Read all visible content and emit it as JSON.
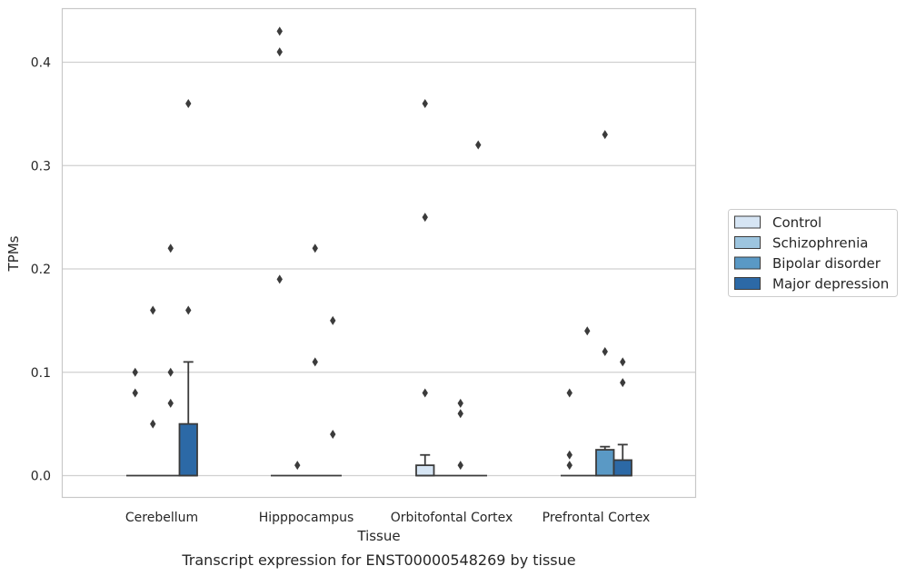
{
  "caption": "Transcript expression for ENST00000548269 by tissue",
  "chart_data": {
    "type": "box",
    "xlabel": "Tissue",
    "ylabel": "TPMs",
    "categories": [
      "Cerebellum",
      "Hipppocampus",
      "Orbitofontal Cortex",
      "Prefrontal Cortex"
    ],
    "ylim": [
      -0.021,
      0.453
    ],
    "yticks": [
      "0.0",
      "0.1",
      "0.2",
      "0.3",
      "0.4"
    ],
    "ytick_values": [
      0.0,
      0.1,
      0.2,
      0.3,
      0.4
    ],
    "grid": true,
    "legend_position": "right",
    "series": [
      {
        "name": "Control",
        "color": "#d6e5f4",
        "boxes": [
          {
            "q1": 0,
            "median": 0,
            "q3": 0,
            "whisker_low": 0,
            "whisker_high": 0,
            "outliers": [
              0.08,
              0.1
            ]
          },
          {
            "q1": 0,
            "median": 0,
            "q3": 0,
            "whisker_low": 0,
            "whisker_high": 0,
            "outliers": [
              0.19,
              0.41,
              0.43
            ]
          },
          {
            "q1": 0,
            "median": 0,
            "q3": 0.01,
            "whisker_low": 0,
            "whisker_high": 0.02,
            "outliers": [
              0.08,
              0.25,
              0.36
            ]
          },
          {
            "q1": 0,
            "median": 0,
            "q3": 0,
            "whisker_low": 0,
            "whisker_high": 0,
            "outliers": [
              0.01,
              0.02,
              0.08
            ]
          }
        ]
      },
      {
        "name": "Schizophrenia",
        "color": "#9dc5df",
        "boxes": [
          {
            "q1": 0,
            "median": 0,
            "q3": 0,
            "whisker_low": 0,
            "whisker_high": 0,
            "outliers": [
              0.05,
              0.16
            ]
          },
          {
            "q1": 0,
            "median": 0,
            "q3": 0,
            "whisker_low": 0,
            "whisker_high": 0,
            "outliers": [
              0.01
            ]
          },
          {
            "q1": 0,
            "median": 0,
            "q3": 0,
            "whisker_low": 0,
            "whisker_high": 0,
            "outliers": []
          },
          {
            "q1": 0,
            "median": 0,
            "q3": 0,
            "whisker_low": 0,
            "whisker_high": 0,
            "outliers": [
              0.14
            ]
          }
        ]
      },
      {
        "name": "Bipolar disorder",
        "color": "#5a99c5",
        "boxes": [
          {
            "q1": 0,
            "median": 0,
            "q3": 0,
            "whisker_low": 0,
            "whisker_high": 0,
            "outliers": [
              0.07,
              0.1,
              0.22
            ]
          },
          {
            "q1": 0,
            "median": 0,
            "q3": 0,
            "whisker_low": 0,
            "whisker_high": 0,
            "outliers": [
              0.11,
              0.22
            ]
          },
          {
            "q1": 0,
            "median": 0,
            "q3": 0,
            "whisker_low": 0,
            "whisker_high": 0,
            "outliers": [
              0.01,
              0.06,
              0.07
            ]
          },
          {
            "q1": 0,
            "median": 0,
            "q3": 0.025,
            "whisker_low": 0,
            "whisker_high": 0.028,
            "outliers": [
              0.12,
              0.33
            ]
          }
        ]
      },
      {
        "name": "Major depression",
        "color": "#2c69a6",
        "boxes": [
          {
            "q1": 0,
            "median": 0,
            "q3": 0.05,
            "whisker_low": 0,
            "whisker_high": 0.11,
            "outliers": [
              0.16,
              0.36
            ]
          },
          {
            "q1": 0,
            "median": 0,
            "q3": 0,
            "whisker_low": 0,
            "whisker_high": 0,
            "outliers": [
              0.04,
              0.15
            ]
          },
          {
            "q1": 0,
            "median": 0,
            "q3": 0,
            "whisker_low": 0,
            "whisker_high": 0,
            "outliers": [
              0.32
            ]
          },
          {
            "q1": 0,
            "median": 0,
            "q3": 0.015,
            "whisker_low": 0,
            "whisker_high": 0.03,
            "outliers": [
              0.09,
              0.11
            ]
          }
        ]
      }
    ]
  },
  "colors": {
    "grid": "#d0d0d0",
    "frame": "#c8c8c8",
    "box_edge": "#3b3b3b",
    "outlier": "#3b3b3b",
    "legend_border": "#cccccc"
  }
}
